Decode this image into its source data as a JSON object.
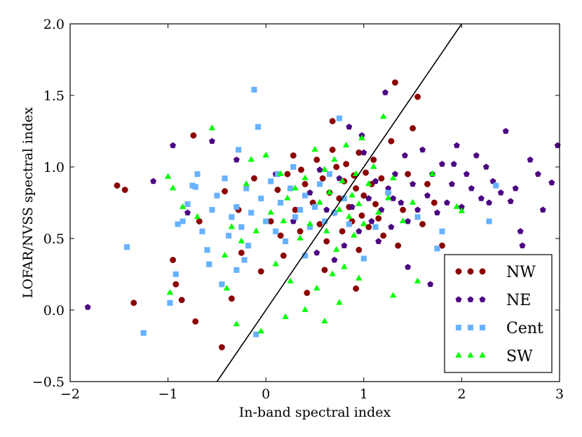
{
  "chart_data": {
    "type": "scatter",
    "title": "",
    "xlabel": "In-band spectral index",
    "ylabel": "LOFAR/NVSS spectral index",
    "xlim": [
      -2,
      3
    ],
    "ylim": [
      -0.5,
      2.0
    ],
    "x_ticks": [
      -2,
      -1,
      0,
      1,
      2,
      3
    ],
    "x_tick_labels": [
      "−2",
      "−1",
      "0",
      "1",
      "2",
      "3"
    ],
    "y_ticks": [
      -0.5,
      0.0,
      0.5,
      1.0,
      1.5,
      2.0
    ],
    "y_tick_labels": [
      "−0.5",
      "0.0",
      "0.5",
      "1.0",
      "1.5",
      "2.0"
    ],
    "grid": false,
    "legend_position": "bottom-right",
    "reference_line": {
      "type": "y = x",
      "points": [
        [
          -0.5,
          -0.5
        ],
        [
          2.0,
          2.0
        ]
      ],
      "color": "#000000"
    },
    "series": [
      {
        "name": "NW",
        "marker": "circle",
        "color": "#8b0000",
        "points": [
          [
            -1.52,
            0.87
          ],
          [
            -1.44,
            0.84
          ],
          [
            -1.35,
            0.05
          ],
          [
            -0.95,
            0.35
          ],
          [
            -0.92,
            0.18
          ],
          [
            -0.86,
            0.07
          ],
          [
            -0.72,
            -0.08
          ],
          [
            -0.74,
            1.22
          ],
          [
            -0.68,
            0.62
          ],
          [
            -0.45,
            -0.26
          ],
          [
            -0.42,
            0.83
          ],
          [
            -0.35,
            0.08
          ],
          [
            -0.28,
            0.7
          ],
          [
            -0.25,
            0.4
          ],
          [
            -0.12,
            0.92
          ],
          [
            -0.05,
            0.27
          ],
          [
            0.05,
            0.62
          ],
          [
            0.12,
            0.84
          ],
          [
            0.18,
            0.38
          ],
          [
            0.22,
            0.95
          ],
          [
            0.28,
            1.08
          ],
          [
            0.3,
            0.7
          ],
          [
            0.35,
            0.55
          ],
          [
            0.4,
            0.88
          ],
          [
            0.42,
            0.12
          ],
          [
            0.48,
            0.75
          ],
          [
            0.52,
            1.05
          ],
          [
            0.55,
            0.6
          ],
          [
            0.58,
            0.92
          ],
          [
            0.62,
            0.48
          ],
          [
            0.65,
            0.82
          ],
          [
            0.68,
            1.12
          ],
          [
            0.7,
            0.68
          ],
          [
            0.72,
            1.0
          ],
          [
            0.75,
            0.78
          ],
          [
            0.78,
            0.55
          ],
          [
            0.8,
            0.9
          ],
          [
            0.82,
            1.02
          ],
          [
            0.85,
            0.72
          ],
          [
            0.88,
            0.62
          ],
          [
            0.9,
            0.94
          ],
          [
            0.92,
            0.85
          ],
          [
            0.95,
            1.1
          ],
          [
            0.98,
            0.66
          ],
          [
            1.0,
            0.8
          ],
          [
            1.02,
            0.96
          ],
          [
            1.05,
            0.58
          ],
          [
            1.08,
            0.88
          ],
          [
            1.1,
            1.05
          ],
          [
            1.12,
            0.74
          ],
          [
            1.15,
            0.64
          ],
          [
            1.18,
            0.92
          ],
          [
            1.2,
            0.52
          ],
          [
            1.25,
            0.82
          ],
          [
            1.28,
            1.18
          ],
          [
            1.32,
            1.59
          ],
          [
            1.35,
            0.45
          ],
          [
            1.4,
            0.7
          ],
          [
            1.45,
            0.95
          ],
          [
            1.5,
            1.27
          ],
          [
            1.55,
            1.49
          ],
          [
            1.6,
            0.6
          ],
          [
            1.65,
            0.88
          ],
          [
            1.72,
            0.75
          ],
          [
            1.8,
            0.45
          ],
          [
            0.68,
            1.32
          ],
          [
            0.92,
            0.15
          ],
          [
            0.6,
            0.28
          ],
          [
            0.36,
            0.98
          ],
          [
            0.15,
            0.52
          ],
          [
            0.95,
            0.42
          ]
        ]
      },
      {
        "name": "NE",
        "marker": "pentagon",
        "color": "#4b0082",
        "points": [
          [
            -1.82,
            0.02
          ],
          [
            -1.15,
            0.9
          ],
          [
            -0.95,
            1.15
          ],
          [
            -0.8,
            0.68
          ],
          [
            -0.55,
            1.18
          ],
          [
            -0.3,
            1.05
          ],
          [
            0.1,
            0.95
          ],
          [
            0.28,
            0.62
          ],
          [
            0.45,
            0.82
          ],
          [
            0.52,
            0.4
          ],
          [
            0.62,
            0.7
          ],
          [
            0.75,
            0.92
          ],
          [
            0.8,
            0.45
          ],
          [
            0.88,
            0.72
          ],
          [
            0.95,
            0.55
          ],
          [
            1.0,
            1.1
          ],
          [
            1.05,
            0.78
          ],
          [
            1.08,
            0.62
          ],
          [
            1.12,
            0.9
          ],
          [
            1.18,
            0.7
          ],
          [
            1.22,
            1.52
          ],
          [
            1.25,
            0.85
          ],
          [
            1.28,
            0.58
          ],
          [
            1.32,
            0.95
          ],
          [
            1.38,
            0.75
          ],
          [
            1.42,
            1.08
          ],
          [
            1.45,
            0.62
          ],
          [
            1.5,
            0.88
          ],
          [
            1.55,
            0.7
          ],
          [
            1.6,
            1.12
          ],
          [
            1.65,
            0.8
          ],
          [
            1.7,
            0.95
          ],
          [
            1.75,
            0.68
          ],
          [
            1.8,
            1.02
          ],
          [
            1.85,
            0.75
          ],
          [
            1.9,
            0.88
          ],
          [
            1.95,
            1.15
          ],
          [
            2.0,
            0.72
          ],
          [
            2.05,
            0.95
          ],
          [
            2.1,
            0.85
          ],
          [
            2.15,
            1.08
          ],
          [
            2.2,
            0.78
          ],
          [
            2.25,
            1.0
          ],
          [
            2.32,
            0.9
          ],
          [
            2.4,
            0.82
          ],
          [
            2.5,
            0.76
          ],
          [
            2.55,
            0.85
          ],
          [
            2.6,
            0.55
          ],
          [
            2.62,
            0.45
          ],
          [
            2.7,
            1.05
          ],
          [
            2.78,
            0.95
          ],
          [
            2.83,
            0.7
          ],
          [
            2.92,
            0.89
          ],
          [
            2.98,
            1.15
          ],
          [
            2.72,
            0.18
          ],
          [
            1.68,
            0.18
          ],
          [
            1.45,
            0.3
          ],
          [
            1.3,
            0.78
          ],
          [
            0.98,
            1.22
          ],
          [
            0.7,
            0.35
          ],
          [
            0.85,
            1.28
          ],
          [
            0.55,
            0.98
          ],
          [
            1.15,
            0.48
          ],
          [
            1.92,
            1.02
          ],
          [
            2.28,
            0.75
          ],
          [
            2.45,
            1.25
          ]
        ]
      },
      {
        "name": "Cent",
        "marker": "square",
        "color": "#66b2ff",
        "points": [
          [
            -1.42,
            0.44
          ],
          [
            -1.25,
            -0.16
          ],
          [
            -0.98,
            0.05
          ],
          [
            -0.92,
            0.25
          ],
          [
            -0.9,
            0.6
          ],
          [
            -0.85,
            0.62
          ],
          [
            -0.8,
            0.74
          ],
          [
            -0.75,
            0.87
          ],
          [
            -0.72,
            0.86
          ],
          [
            -0.7,
            0.95
          ],
          [
            -0.65,
            0.55
          ],
          [
            -0.6,
            0.42
          ],
          [
            -0.58,
            0.32
          ],
          [
            -0.55,
            0.7
          ],
          [
            -0.5,
            0.8
          ],
          [
            -0.45,
            0.18
          ],
          [
            -0.42,
            0.92
          ],
          [
            -0.38,
            0.52
          ],
          [
            -0.35,
            0.65
          ],
          [
            -0.3,
            0.72
          ],
          [
            -0.28,
            1.12
          ],
          [
            -0.25,
            0.58
          ],
          [
            -0.22,
            0.35
          ],
          [
            -0.2,
            0.85
          ],
          [
            -0.18,
            0.45
          ],
          [
            -0.15,
            0.68
          ],
          [
            -0.12,
            1.54
          ],
          [
            -0.1,
            -0.17
          ],
          [
            -0.08,
            1.28
          ],
          [
            -0.05,
            0.78
          ],
          [
            0.0,
            0.62
          ],
          [
            0.05,
            0.9
          ],
          [
            0.1,
            0.55
          ],
          [
            0.15,
            0.75
          ],
          [
            0.2,
            0.48
          ],
          [
            0.25,
            0.85
          ],
          [
            0.3,
            0.65
          ],
          [
            0.35,
            0.7
          ],
          [
            0.4,
            0.8
          ],
          [
            0.45,
            0.58
          ],
          [
            0.5,
            0.72
          ],
          [
            0.55,
            0.88
          ],
          [
            0.6,
            0.62
          ],
          [
            0.65,
            0.95
          ],
          [
            0.7,
            0.68
          ],
          [
            0.75,
            1.34
          ],
          [
            0.8,
            0.78
          ],
          [
            0.85,
            0.6
          ],
          [
            1.0,
            0.36
          ],
          [
            1.12,
            0.58
          ],
          [
            1.25,
            0.82
          ],
          [
            1.55,
            0.65
          ],
          [
            1.75,
            0.43
          ],
          [
            1.8,
            0.55
          ],
          [
            2.35,
            0.87
          ],
          [
            2.28,
            0.62
          ],
          [
            0.4,
            0.38
          ],
          [
            0.12,
            0.95
          ],
          [
            -0.3,
            0.28
          ],
          [
            0.28,
            1.0
          ]
        ]
      },
      {
        "name": "SW",
        "marker": "triangle",
        "color": "#00ff00",
        "points": [
          [
            -1.0,
            0.93
          ],
          [
            -0.98,
            0.12
          ],
          [
            -0.95,
            0.85
          ],
          [
            -0.85,
            0.72
          ],
          [
            -0.7,
            0.65
          ],
          [
            -0.55,
            1.27
          ],
          [
            -0.4,
            0.15
          ],
          [
            -0.35,
            0.58
          ],
          [
            -0.3,
            -0.1
          ],
          [
            -0.25,
            0.48
          ],
          [
            -0.2,
            0.88
          ],
          [
            -0.15,
            1.05
          ],
          [
            -0.1,
            0.55
          ],
          [
            -0.05,
            -0.15
          ],
          [
            0.0,
            1.08
          ],
          [
            0.05,
            0.68
          ],
          [
            0.1,
            0.32
          ],
          [
            0.15,
            0.95
          ],
          [
            0.18,
            0.62
          ],
          [
            0.22,
            0.78
          ],
          [
            0.25,
            0.2
          ],
          [
            0.3,
            0.85
          ],
          [
            0.35,
            0.5
          ],
          [
            0.4,
            0.92
          ],
          [
            0.45,
            0.6
          ],
          [
            0.5,
            1.12
          ],
          [
            0.52,
            0.15
          ],
          [
            0.55,
            0.75
          ],
          [
            0.6,
            0.98
          ],
          [
            0.62,
            0.55
          ],
          [
            0.65,
            0.82
          ],
          [
            0.7,
            1.05
          ],
          [
            0.72,
            0.42
          ],
          [
            0.75,
            0.7
          ],
          [
            0.78,
            0.9
          ],
          [
            0.8,
            0.3
          ],
          [
            0.82,
            1.15
          ],
          [
            0.85,
            0.65
          ],
          [
            0.88,
            0.8
          ],
          [
            0.9,
            0.52
          ],
          [
            0.92,
            0.95
          ],
          [
            0.95,
            0.74
          ],
          [
            0.98,
            1.2
          ],
          [
            1.0,
            0.6
          ],
          [
            1.05,
            0.88
          ],
          [
            1.1,
            1.0
          ],
          [
            1.15,
            0.68
          ],
          [
            1.2,
            1.35
          ],
          [
            1.25,
            0.78
          ],
          [
            1.3,
            0.92
          ],
          [
            1.4,
            0.62
          ],
          [
            1.5,
            0.75
          ],
          [
            1.7,
            0.95
          ],
          [
            1.95,
            0.72
          ],
          [
            2.0,
            0.69
          ],
          [
            0.6,
            -0.08
          ],
          [
            0.75,
            0.05
          ],
          [
            0.4,
            0.0
          ],
          [
            0.95,
            0.22
          ],
          [
            1.3,
            0.1
          ],
          [
            0.2,
            -0.05
          ],
          [
            -0.42,
            0.38
          ],
          [
            0.68,
            0.25
          ],
          [
            1.55,
            0.2
          ]
        ]
      }
    ]
  }
}
